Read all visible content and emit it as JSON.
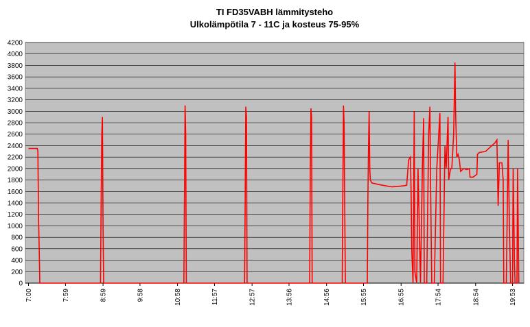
{
  "chart_data": {
    "type": "line",
    "title": "TI FD35VABH lämmitysteho",
    "subtitle": "Ulkolämpötila  7 - 11C ja kosteus 75-95%",
    "xlim": [
      415,
      1211
    ],
    "xticks": [
      {
        "value": 420,
        "label": "7:00"
      },
      {
        "value": 479,
        "label": "7:59"
      },
      {
        "value": 539,
        "label": "8:59"
      },
      {
        "value": 598,
        "label": "9:58"
      },
      {
        "value": 658,
        "label": "10:58"
      },
      {
        "value": 717,
        "label": "11:57"
      },
      {
        "value": 777,
        "label": "12:57"
      },
      {
        "value": 836,
        "label": "13:56"
      },
      {
        "value": 896,
        "label": "14:56"
      },
      {
        "value": 955,
        "label": "15:55"
      },
      {
        "value": 1015,
        "label": "16:55"
      },
      {
        "value": 1074,
        "label": "17:54"
      },
      {
        "value": 1134,
        "label": "18:54"
      },
      {
        "value": 1193,
        "label": "19:53"
      }
    ],
    "ylim": [
      0,
      4200
    ],
    "yticks": [
      0,
      200,
      400,
      600,
      800,
      1000,
      1200,
      1400,
      1600,
      1800,
      2000,
      2200,
      2400,
      2600,
      2800,
      3000,
      3200,
      3400,
      3600,
      3800,
      4000,
      4200
    ],
    "grid": true,
    "background": "#c0c0c0",
    "series": [
      {
        "color": "#ff0000",
        "x": [
          420,
          434,
          435,
          436,
          437,
          438,
          535,
          536,
          537,
          538,
          539,
          540,
          668,
          669,
          670,
          671,
          672,
          765,
          766,
          767,
          768,
          769,
          869,
          870,
          871,
          872,
          873,
          921,
          922,
          923,
          924,
          925,
          926,
          961,
          962,
          963,
          964,
          965,
          966,
          968,
          980,
          990,
          1000,
          1010,
          1020,
          1024,
          1027,
          1030,
          1031,
          1032,
          1034,
          1036,
          1037,
          1040,
          1042,
          1046,
          1049,
          1051,
          1052,
          1056,
          1059,
          1061,
          1062,
          1064,
          1068,
          1072,
          1077,
          1078,
          1082,
          1085,
          1087,
          1090,
          1091,
          1094,
          1096,
          1099,
          1101,
          1102,
          1104,
          1106,
          1108,
          1110,
          1115,
          1120,
          1124,
          1125,
          1130,
          1136,
          1137,
          1140,
          1150,
          1155,
          1160,
          1165,
          1168,
          1170,
          1172,
          1176,
          1178,
          1179,
          1183,
          1186,
          1188,
          1190,
          1193,
          1194,
          1196,
          1197,
          1200,
          1201,
          1203
        ],
        "values": [
          2350,
          2350,
          2300,
          1100,
          600,
          0,
          0,
          1500,
          2600,
          2900,
          1000,
          0,
          0,
          1500,
          3100,
          2600,
          0,
          0,
          1400,
          3080,
          2900,
          0,
          0,
          2000,
          3050,
          2900,
          0,
          0,
          1600,
          3100,
          2800,
          1200,
          0,
          0,
          1500,
          2400,
          3000,
          2000,
          1800,
          1750,
          1720,
          1700,
          1680,
          1690,
          1700,
          1710,
          2150,
          2200,
          1600,
          600,
          0,
          3000,
          200,
          0,
          2000,
          0,
          2000,
          2880,
          0,
          0,
          2600,
          3080,
          1800,
          0,
          0,
          2000,
          2970,
          0,
          0,
          2400,
          2000,
          2900,
          1800,
          2000,
          2000,
          2600,
          3850,
          3000,
          2200,
          2250,
          2150,
          1950,
          2000,
          1980,
          2000,
          1850,
          1850,
          1900,
          2250,
          2280,
          2300,
          2350,
          2400,
          2450,
          2500,
          1350,
          2100,
          2100,
          1800,
          0,
          0,
          2500,
          1000,
          0,
          0,
          2000,
          400,
          0,
          0,
          2000,
          0
        ]
      }
    ]
  }
}
